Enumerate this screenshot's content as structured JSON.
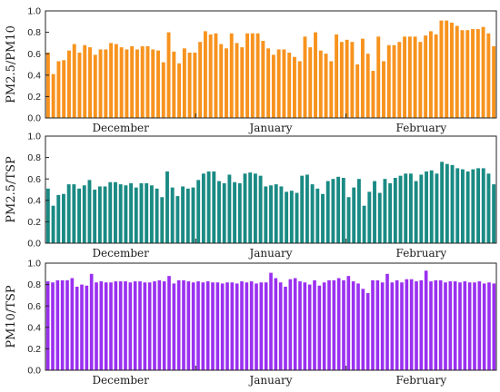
{
  "chart_data": [
    {
      "type": "bar",
      "ylabel": "PM2.5/PM10",
      "color": "#F7931E",
      "ylim": [
        0,
        1.0
      ],
      "yticks": [
        "0.0",
        "0.2",
        "0.4",
        "0.6",
        "0.8",
        "1.0"
      ],
      "months": [
        "December",
        "January",
        "February"
      ],
      "values": [
        0.61,
        0.41,
        0.53,
        0.54,
        0.63,
        0.69,
        0.61,
        0.68,
        0.66,
        0.59,
        0.64,
        0.64,
        0.7,
        0.69,
        0.66,
        0.64,
        0.67,
        0.64,
        0.67,
        0.67,
        0.64,
        0.63,
        0.52,
        0.8,
        0.62,
        0.51,
        0.65,
        0.61,
        0.61,
        0.71,
        0.81,
        0.78,
        0.79,
        0.69,
        0.65,
        0.79,
        0.7,
        0.66,
        0.79,
        0.79,
        0.79,
        0.72,
        0.65,
        0.59,
        0.64,
        0.64,
        0.61,
        0.57,
        0.53,
        0.76,
        0.66,
        0.8,
        0.63,
        0.6,
        0.53,
        0.78,
        0.71,
        0.73,
        0.71,
        0.5,
        0.74,
        0.6,
        0.44,
        0.76,
        0.53,
        0.68,
        0.68,
        0.71,
        0.76,
        0.76,
        0.76,
        0.71,
        0.77,
        0.81,
        0.78,
        0.91,
        0.91,
        0.89,
        0.86,
        0.82,
        0.82,
        0.83,
        0.83,
        0.85,
        0.79,
        0.67
      ]
    },
    {
      "type": "bar",
      "ylabel": "PM2.5/TSP",
      "color": "#1A8A84",
      "ylim": [
        0,
        1.0
      ],
      "yticks": [
        "0.0",
        "0.2",
        "0.4",
        "0.6",
        "0.8",
        "1.0"
      ],
      "months": [
        "December",
        "January",
        "February"
      ],
      "values": [
        0.51,
        0.35,
        0.45,
        0.46,
        0.55,
        0.55,
        0.51,
        0.54,
        0.59,
        0.5,
        0.53,
        0.53,
        0.57,
        0.57,
        0.55,
        0.54,
        0.56,
        0.52,
        0.56,
        0.56,
        0.54,
        0.51,
        0.43,
        0.67,
        0.52,
        0.44,
        0.53,
        0.51,
        0.52,
        0.59,
        0.65,
        0.67,
        0.67,
        0.58,
        0.56,
        0.64,
        0.57,
        0.56,
        0.65,
        0.66,
        0.65,
        0.63,
        0.53,
        0.54,
        0.55,
        0.53,
        0.48,
        0.49,
        0.47,
        0.63,
        0.64,
        0.55,
        0.51,
        0.46,
        0.58,
        0.6,
        0.62,
        0.61,
        0.43,
        0.52,
        0.6,
        0.35,
        0.48,
        0.58,
        0.47,
        0.6,
        0.56,
        0.61,
        0.63,
        0.65,
        0.65,
        0.58,
        0.64,
        0.67,
        0.68,
        0.65,
        0.76,
        0.74,
        0.73,
        0.7,
        0.69,
        0.67,
        0.69,
        0.7,
        0.7,
        0.65,
        0.55
      ]
    },
    {
      "type": "bar",
      "ylabel": "PM10/TSP",
      "color": "#9B30F0",
      "ylim": [
        0,
        1.0
      ],
      "yticks": [
        "0.0",
        "0.2",
        "0.4",
        "0.6",
        "0.8",
        "1.0"
      ],
      "months": [
        "December",
        "January",
        "February"
      ],
      "values": [
        0.83,
        0.82,
        0.84,
        0.84,
        0.84,
        0.86,
        0.78,
        0.8,
        0.79,
        0.9,
        0.82,
        0.83,
        0.82,
        0.82,
        0.83,
        0.83,
        0.83,
        0.82,
        0.83,
        0.83,
        0.82,
        0.82,
        0.83,
        0.84,
        0.83,
        0.88,
        0.81,
        0.84,
        0.84,
        0.83,
        0.82,
        0.83,
        0.82,
        0.83,
        0.82,
        0.82,
        0.81,
        0.82,
        0.82,
        0.81,
        0.83,
        0.82,
        0.83,
        0.81,
        0.82,
        0.82,
        0.91,
        0.86,
        0.82,
        0.78,
        0.85,
        0.86,
        0.83,
        0.82,
        0.8,
        0.84,
        0.79,
        0.82,
        0.84,
        0.84,
        0.86,
        0.84,
        0.88,
        0.83,
        0.81,
        0.76,
        0.72,
        0.84,
        0.84,
        0.82,
        0.9,
        0.82,
        0.84,
        0.82,
        0.85,
        0.85,
        0.83,
        0.84,
        0.93,
        0.83,
        0.84,
        0.84,
        0.82,
        0.83,
        0.83,
        0.82,
        0.83,
        0.82,
        0.82,
        0.83,
        0.81,
        0.82,
        0.81
      ]
    }
  ]
}
